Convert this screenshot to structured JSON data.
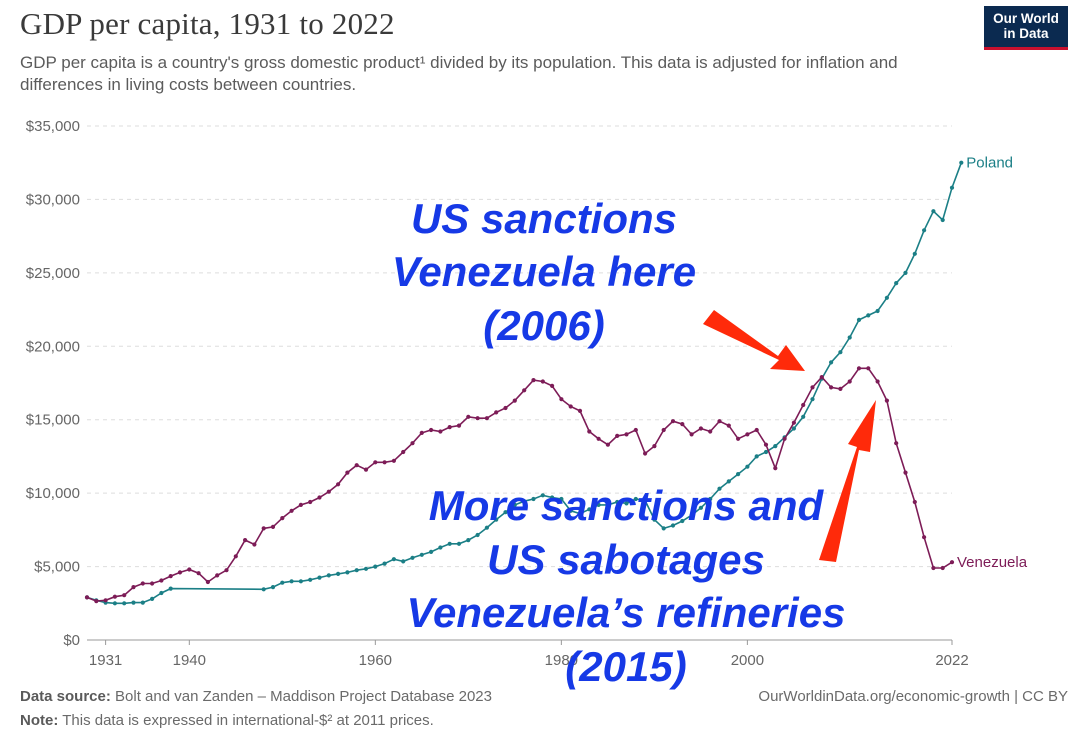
{
  "header": {
    "title": "GDP per capita, 1931 to 2022",
    "subtitle": "GDP per capita is a country's gross domestic product¹ divided by its population. This data is adjusted for inflation and differences in living costs between countries.",
    "logo_line1": "Our World",
    "logo_line2": "in Data"
  },
  "footer": {
    "source_label": "Data source:",
    "source_text": "Bolt and van Zanden – Maddison Project Database 2023",
    "note_label": "Note:",
    "note_text": "This data is expressed in international-$² at 2011 prices.",
    "right_text": "OurWorldinData.org/economic-growth | CC BY"
  },
  "annotations": {
    "top_lines": [
      "US sanctions",
      "Venezuela here",
      "(2006)"
    ],
    "bottom_lines": [
      "More sanctions and",
      "US sabotages",
      "Venezuela’s refineries",
      "(2015)"
    ],
    "arrow_color": "#ff2a0a"
  },
  "chart_data": {
    "type": "line",
    "title": "GDP per capita, 1931 to 2022",
    "xlim": [
      1929,
      2022
    ],
    "ylim": [
      0,
      35000
    ],
    "x_ticks": [
      "1931",
      "1940",
      "1960",
      "1980",
      "2000",
      "2022"
    ],
    "y_ticks": [
      "$0",
      "$5,000",
      "$10,000",
      "$15,000",
      "$20,000",
      "$25,000",
      "$30,000",
      "$35,000"
    ],
    "grid": true,
    "series": [
      {
        "name": "Poland",
        "color": "#1b7f86",
        "points": [
          [
            1929,
            2900
          ],
          [
            1930,
            2700
          ],
          [
            1931,
            2550
          ],
          [
            1932,
            2500
          ],
          [
            1933,
            2500
          ],
          [
            1934,
            2550
          ],
          [
            1935,
            2550
          ],
          [
            1936,
            2800
          ],
          [
            1937,
            3200
          ],
          [
            1938,
            3500
          ],
          [
            1948,
            3450
          ],
          [
            1949,
            3600
          ],
          [
            1950,
            3900
          ],
          [
            1951,
            4000
          ],
          [
            1952,
            4000
          ],
          [
            1953,
            4100
          ],
          [
            1954,
            4250
          ],
          [
            1955,
            4400
          ],
          [
            1956,
            4500
          ],
          [
            1957,
            4600
          ],
          [
            1958,
            4750
          ],
          [
            1959,
            4850
          ],
          [
            1960,
            5000
          ],
          [
            1961,
            5200
          ],
          [
            1962,
            5500
          ],
          [
            1963,
            5350
          ],
          [
            1964,
            5600
          ],
          [
            1965,
            5800
          ],
          [
            1966,
            6000
          ],
          [
            1967,
            6300
          ],
          [
            1968,
            6550
          ],
          [
            1969,
            6550
          ],
          [
            1970,
            6800
          ],
          [
            1971,
            7150
          ],
          [
            1972,
            7650
          ],
          [
            1973,
            8200
          ],
          [
            1974,
            8700
          ],
          [
            1975,
            9200
          ],
          [
            1976,
            9450
          ],
          [
            1977,
            9600
          ],
          [
            1978,
            9850
          ],
          [
            1979,
            9700
          ],
          [
            1980,
            9600
          ],
          [
            1981,
            8800
          ],
          [
            1982,
            8600
          ],
          [
            1983,
            8900
          ],
          [
            1984,
            9200
          ],
          [
            1985,
            9200
          ],
          [
            1986,
            9400
          ],
          [
            1987,
            9300
          ],
          [
            1988,
            9600
          ],
          [
            1989,
            9500
          ],
          [
            1990,
            8200
          ],
          [
            1991,
            7600
          ],
          [
            1992,
            7800
          ],
          [
            1993,
            8100
          ],
          [
            1994,
            8500
          ],
          [
            1995,
            9000
          ],
          [
            1996,
            9600
          ],
          [
            1997,
            10300
          ],
          [
            1998,
            10800
          ],
          [
            1999,
            11300
          ],
          [
            2000,
            11800
          ],
          [
            2001,
            12500
          ],
          [
            2002,
            12800
          ],
          [
            2003,
            13200
          ],
          [
            2004,
            13800
          ],
          [
            2005,
            14400
          ],
          [
            2006,
            15200
          ],
          [
            2007,
            16400
          ],
          [
            2008,
            17800
          ],
          [
            2009,
            18900
          ],
          [
            2010,
            19600
          ],
          [
            2011,
            20600
          ],
          [
            2012,
            21800
          ],
          [
            2013,
            22100
          ],
          [
            2014,
            22400
          ],
          [
            2015,
            23300
          ],
          [
            2016,
            24300
          ],
          [
            2017,
            25000
          ],
          [
            2018,
            26300
          ],
          [
            2019,
            27900
          ],
          [
            2020,
            29200
          ],
          [
            2021,
            28600
          ],
          [
            2022,
            30800
          ],
          [
            2023,
            32500
          ]
        ]
      },
      {
        "name": "Venezuela",
        "color": "#7d1c57",
        "points": [
          [
            1929,
            2900
          ],
          [
            1930,
            2650
          ],
          [
            1931,
            2700
          ],
          [
            1932,
            2950
          ],
          [
            1933,
            3050
          ],
          [
            1934,
            3600
          ],
          [
            1935,
            3850
          ],
          [
            1936,
            3850
          ],
          [
            1937,
            4050
          ],
          [
            1938,
            4350
          ],
          [
            1939,
            4600
          ],
          [
            1940,
            4800
          ],
          [
            1941,
            4550
          ],
          [
            1942,
            3950
          ],
          [
            1943,
            4400
          ],
          [
            1944,
            4750
          ],
          [
            1945,
            5700
          ],
          [
            1946,
            6800
          ],
          [
            1947,
            6500
          ],
          [
            1948,
            7600
          ],
          [
            1949,
            7700
          ],
          [
            1950,
            8300
          ],
          [
            1951,
            8800
          ],
          [
            1952,
            9200
          ],
          [
            1953,
            9400
          ],
          [
            1954,
            9700
          ],
          [
            1955,
            10100
          ],
          [
            1956,
            10600
          ],
          [
            1957,
            11400
          ],
          [
            1958,
            11900
          ],
          [
            1959,
            11600
          ],
          [
            1960,
            12100
          ],
          [
            1961,
            12100
          ],
          [
            1962,
            12200
          ],
          [
            1963,
            12800
          ],
          [
            1964,
            13400
          ],
          [
            1965,
            14100
          ],
          [
            1966,
            14300
          ],
          [
            1967,
            14200
          ],
          [
            1968,
            14500
          ],
          [
            1969,
            14600
          ],
          [
            1970,
            15200
          ],
          [
            1971,
            15100
          ],
          [
            1972,
            15100
          ],
          [
            1973,
            15500
          ],
          [
            1974,
            15800
          ],
          [
            1975,
            16300
          ],
          [
            1976,
            17000
          ],
          [
            1977,
            17700
          ],
          [
            1978,
            17600
          ],
          [
            1979,
            17300
          ],
          [
            1980,
            16400
          ],
          [
            1981,
            15900
          ],
          [
            1982,
            15600
          ],
          [
            1983,
            14200
          ],
          [
            1984,
            13700
          ],
          [
            1985,
            13300
          ],
          [
            1986,
            13900
          ],
          [
            1987,
            14000
          ],
          [
            1988,
            14300
          ],
          [
            1989,
            12700
          ],
          [
            1990,
            13200
          ],
          [
            1991,
            14300
          ],
          [
            1992,
            14900
          ],
          [
            1993,
            14700
          ],
          [
            1994,
            14000
          ],
          [
            1995,
            14400
          ],
          [
            1996,
            14200
          ],
          [
            1997,
            14900
          ],
          [
            1998,
            14600
          ],
          [
            1999,
            13700
          ],
          [
            2000,
            14000
          ],
          [
            2001,
            14300
          ],
          [
            2002,
            13300
          ],
          [
            2003,
            11700
          ],
          [
            2004,
            13700
          ],
          [
            2005,
            14800
          ],
          [
            2006,
            16000
          ],
          [
            2007,
            17200
          ],
          [
            2008,
            17900
          ],
          [
            2009,
            17200
          ],
          [
            2010,
            17100
          ],
          [
            2011,
            17600
          ],
          [
            2012,
            18500
          ],
          [
            2013,
            18500
          ],
          [
            2014,
            17600
          ],
          [
            2015,
            16300
          ],
          [
            2016,
            13400
          ],
          [
            2017,
            11400
          ],
          [
            2018,
            9400
          ],
          [
            2019,
            7000
          ],
          [
            2020,
            4900
          ],
          [
            2021,
            4900
          ],
          [
            2022,
            5300
          ]
        ]
      }
    ]
  }
}
